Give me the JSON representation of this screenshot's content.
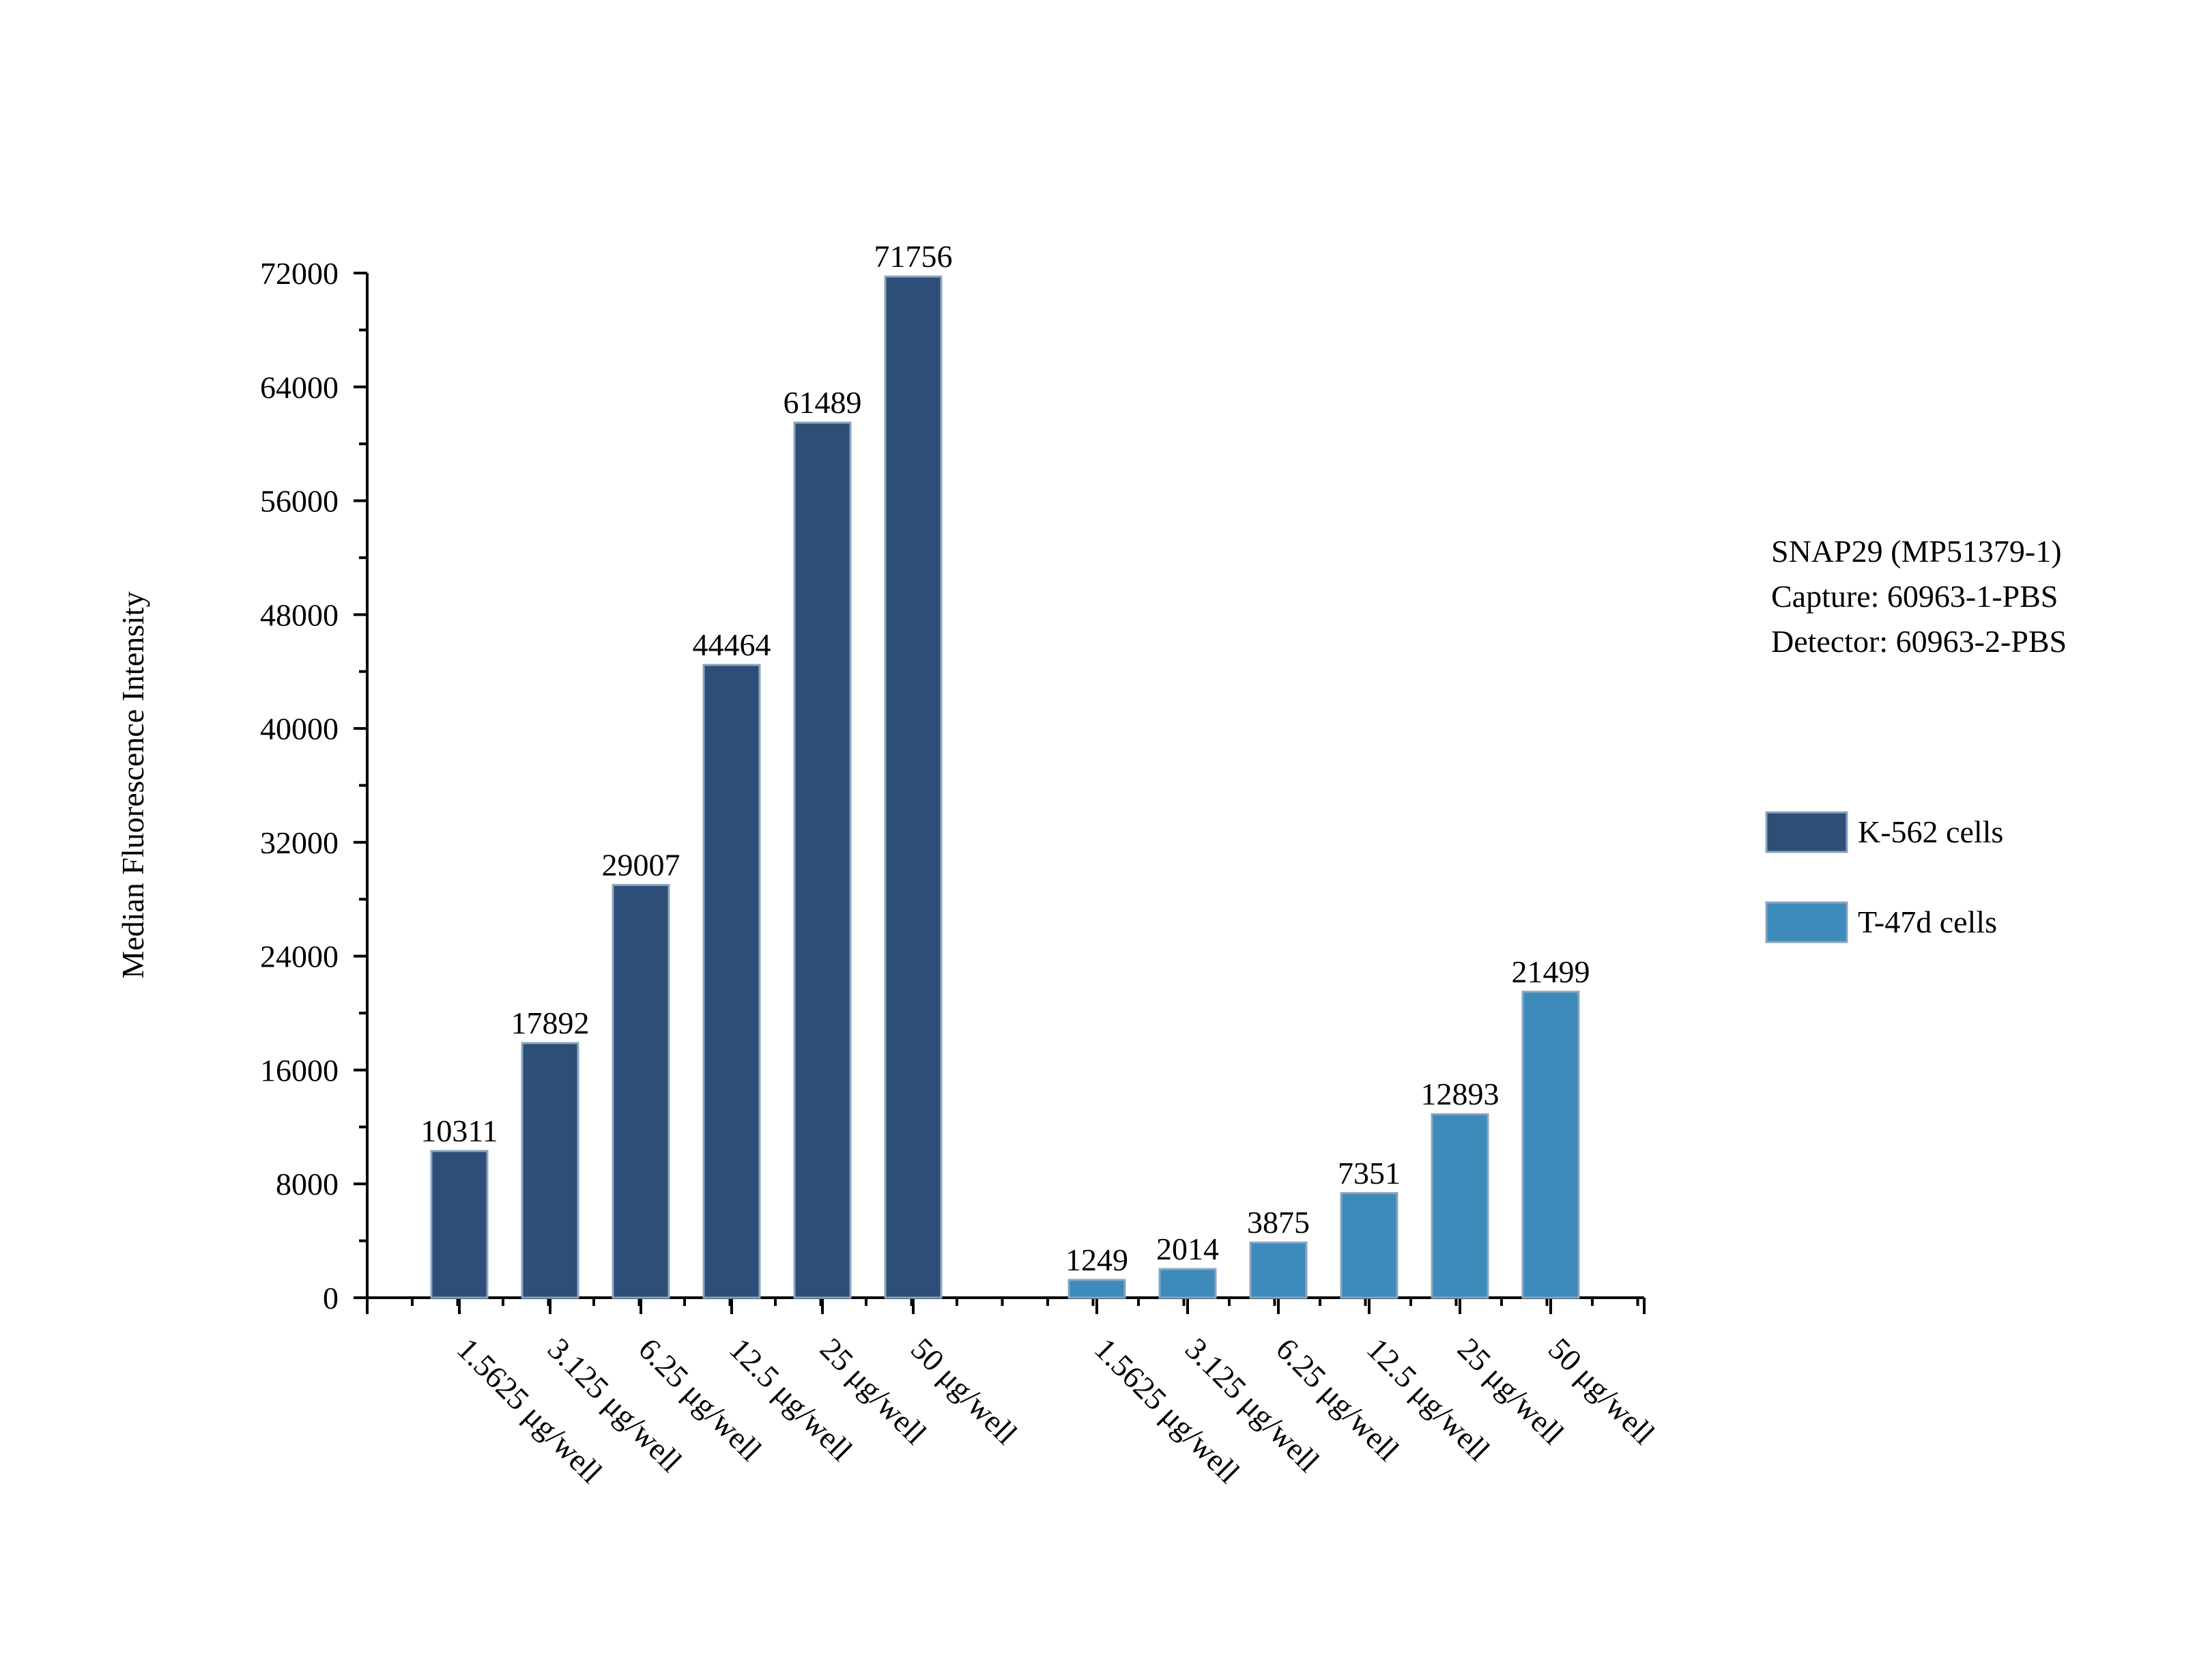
{
  "chart_data": {
    "type": "bar",
    "ylabel": "Median Fluorescence Intensity",
    "ylim": [
      0,
      72000
    ],
    "y_ticks": [
      0,
      8000,
      16000,
      24000,
      32000,
      40000,
      48000,
      56000,
      64000,
      72000
    ],
    "categories": [
      "1.5625 μg/well",
      "3.125 μg/well",
      "6.25 μg/well",
      "12.5 μg/well",
      "25 μg/well",
      "50 μg/well"
    ],
    "series": [
      {
        "name": "K-562 cells",
        "color": "#2e4e78",
        "values": [
          10311,
          17892,
          29007,
          44464,
          61489,
          71756
        ]
      },
      {
        "name": "T-47d cells",
        "color": "#3d8bbb",
        "values": [
          1249,
          2014,
          3875,
          7351,
          12893,
          21499
        ]
      }
    ],
    "annotation": [
      "SNAP29 (MP51379-1)",
      "Capture: 60963-1-PBS",
      "Detector: 60963-2-PBS"
    ],
    "legend_position": "right"
  }
}
